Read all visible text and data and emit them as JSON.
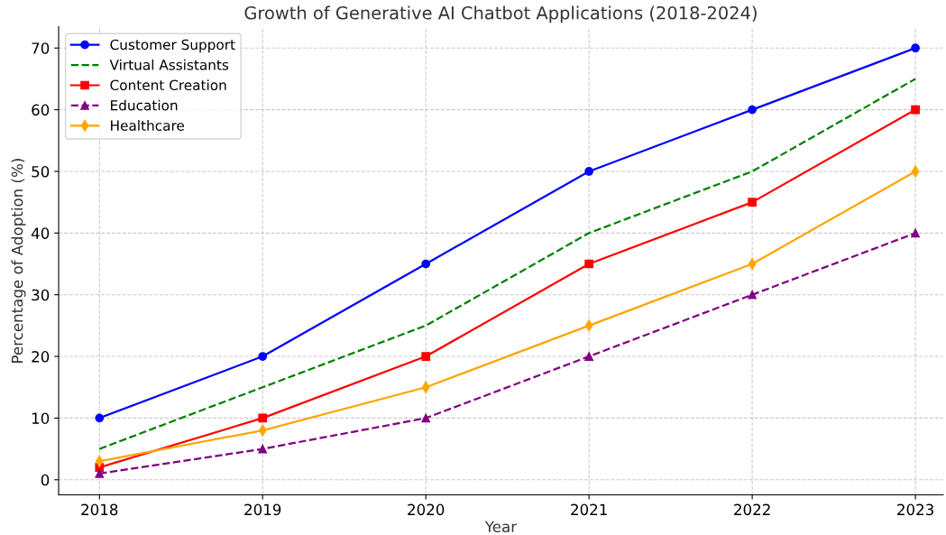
{
  "chart_data": {
    "type": "line",
    "title": "Growth of Generative AI Chatbot Applications (2018-2024)",
    "xlabel": "Year",
    "ylabel": "Percentage of Adoption (%)",
    "x": [
      2018,
      2019,
      2020,
      2021,
      2022,
      2023
    ],
    "series": [
      {
        "name": "Customer Support",
        "color": "#0000ff",
        "marker": "circle",
        "line_style": "solid",
        "values": [
          10,
          20,
          35,
          50,
          60,
          70
        ]
      },
      {
        "name": "Virtual Assistants",
        "color": "#008000",
        "marker": "none",
        "line_style": "dashed",
        "values": [
          5,
          15,
          25,
          40,
          50,
          65
        ]
      },
      {
        "name": "Content Creation",
        "color": "#ff0000",
        "marker": "square",
        "line_style": "solid",
        "values": [
          2,
          10,
          20,
          35,
          45,
          60
        ]
      },
      {
        "name": "Education",
        "color": "#800080",
        "marker": "triangle",
        "line_style": "dashed",
        "values": [
          1,
          5,
          10,
          20,
          30,
          40
        ]
      },
      {
        "name": "Healthcare",
        "color": "#ffa500",
        "marker": "diamond",
        "line_style": "solid",
        "values": [
          3,
          8,
          15,
          25,
          35,
          50
        ]
      }
    ],
    "xlim": [
      2017.75,
      2023.17
    ],
    "xticks": [
      2018,
      2019,
      2020,
      2021,
      2022,
      2023
    ],
    "ylim": [
      -2.45,
      73.45
    ],
    "yticks": [
      0,
      10,
      20,
      30,
      40,
      50,
      60,
      70
    ],
    "grid": true,
    "legend": "top left"
  }
}
